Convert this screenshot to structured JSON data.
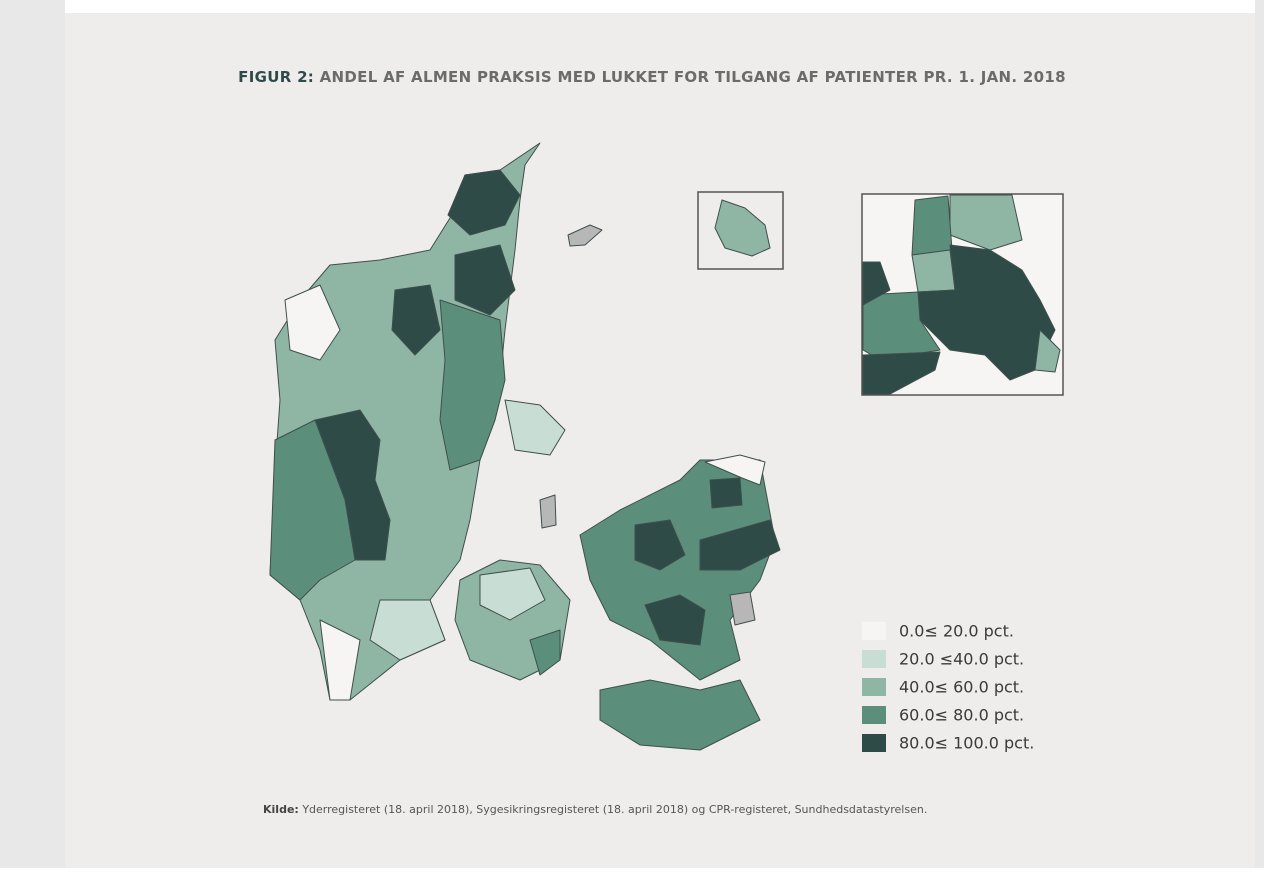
{
  "header": {
    "figure_label": "FIGUR 2:",
    "title": "ANDEL AF ALMEN PRAKSIS MED LUKKET FOR TILGANG AF PATIENTER PR. 1. JAN. 2018"
  },
  "legend": [
    {
      "label": "0.0≤ 20.0 pct.",
      "color": "#f6f5f3"
    },
    {
      "label": "20.0 ≤40.0 pct.",
      "color": "#c8ddd4"
    },
    {
      "label": "40.0≤ 60.0 pct.",
      "color": "#8fb6a5"
    },
    {
      "label": "60.0≤ 80.0 pct.",
      "color": "#5b8f7c"
    },
    {
      "label": "80.0≤ 100.0 pct.",
      "color": "#2f4b47"
    }
  ],
  "source": {
    "label": "Kilde:",
    "text": "Yderregisteret (18. april 2018), Sygesikringsregisteret (18. april 2018) og CPR-registeret, Sundhedsdatastyrelsen."
  }
}
